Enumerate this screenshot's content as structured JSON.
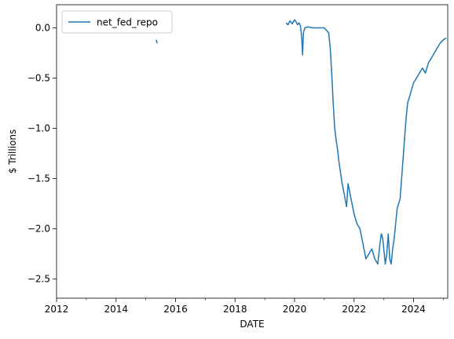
{
  "chart_data": {
    "type": "line",
    "xlabel": "DATE",
    "ylabel": "$ Trillions",
    "legend": {
      "placement": "upper-left",
      "entries": [
        "net_fed_repo"
      ]
    },
    "grid": false,
    "xlim": [
      2012.0,
      2025.15
    ],
    "ylim": [
      -2.69,
      0.23
    ],
    "x_ticks": [
      2012,
      2014,
      2016,
      2018,
      2020,
      2022,
      2024
    ],
    "x_tick_labels": [
      "2012",
      "2014",
      "2016",
      "2018",
      "2020",
      "2022",
      "2024"
    ],
    "y_ticks": [
      0.0,
      -0.5,
      -1.0,
      -1.5,
      -2.0,
      -2.5
    ],
    "y_tick_labels": [
      "0.0",
      "−0.5",
      "−1.0",
      "−1.5",
      "−2.0",
      "−2.5"
    ],
    "line_color": "#1f77b4",
    "series": [
      {
        "name": "net_fed_repo",
        "segments": [
          {
            "x": [
              2015.35,
              2015.38,
              2015.36,
              2015.37
            ],
            "y": [
              -0.12,
              -0.15,
              -0.13,
              -0.14
            ]
          },
          {
            "x": [
              2019.72,
              2019.78,
              2019.85,
              2019.92,
              2020.0,
              2020.05,
              2020.1,
              2020.15,
              2020.2,
              2020.24,
              2020.27,
              2020.3,
              2020.35,
              2020.45,
              2020.6,
              2020.8,
              2021.0,
              2021.15,
              2021.2,
              2021.25,
              2021.3,
              2021.35,
              2021.4,
              2021.45,
              2021.5,
              2021.55,
              2021.6,
              2021.65,
              2021.7,
              2021.75,
              2021.8,
              2021.9,
              2022.0,
              2022.1,
              2022.2,
              2022.3,
              2022.4,
              2022.5,
              2022.6,
              2022.7,
              2022.8,
              2022.87,
              2022.92,
              2022.97,
              2023.0,
              2023.05,
              2023.1,
              2023.15,
              2023.2,
              2023.25,
              2023.3,
              2023.35,
              2023.4,
              2023.45,
              2023.5,
              2023.55,
              2023.6,
              2023.65,
              2023.7,
              2023.75,
              2023.8,
              2023.9,
              2024.0,
              2024.1,
              2024.2,
              2024.3,
              2024.4,
              2024.5,
              2024.6,
              2024.7,
              2024.8,
              2024.9,
              2025.0,
              2025.1
            ],
            "y": [
              0.05,
              0.03,
              0.07,
              0.04,
              0.08,
              0.06,
              0.03,
              0.05,
              0.02,
              -0.1,
              -0.27,
              -0.05,
              0.0,
              0.01,
              0.0,
              0.0,
              0.0,
              -0.05,
              -0.2,
              -0.45,
              -0.75,
              -1.0,
              -1.12,
              -1.22,
              -1.35,
              -1.45,
              -1.55,
              -1.62,
              -1.7,
              -1.78,
              -1.55,
              -1.7,
              -1.85,
              -1.95,
              -2.0,
              -2.15,
              -2.3,
              -2.25,
              -2.2,
              -2.3,
              -2.35,
              -2.15,
              -2.05,
              -2.1,
              -2.2,
              -2.35,
              -2.25,
              -2.05,
              -2.3,
              -2.35,
              -2.2,
              -2.1,
              -1.95,
              -1.8,
              -1.75,
              -1.7,
              -1.5,
              -1.3,
              -1.1,
              -0.9,
              -0.75,
              -0.65,
              -0.55,
              -0.5,
              -0.45,
              -0.4,
              -0.45,
              -0.35,
              -0.3,
              -0.25,
              -0.2,
              -0.15,
              -0.12,
              -0.1
            ]
          }
        ]
      }
    ]
  }
}
